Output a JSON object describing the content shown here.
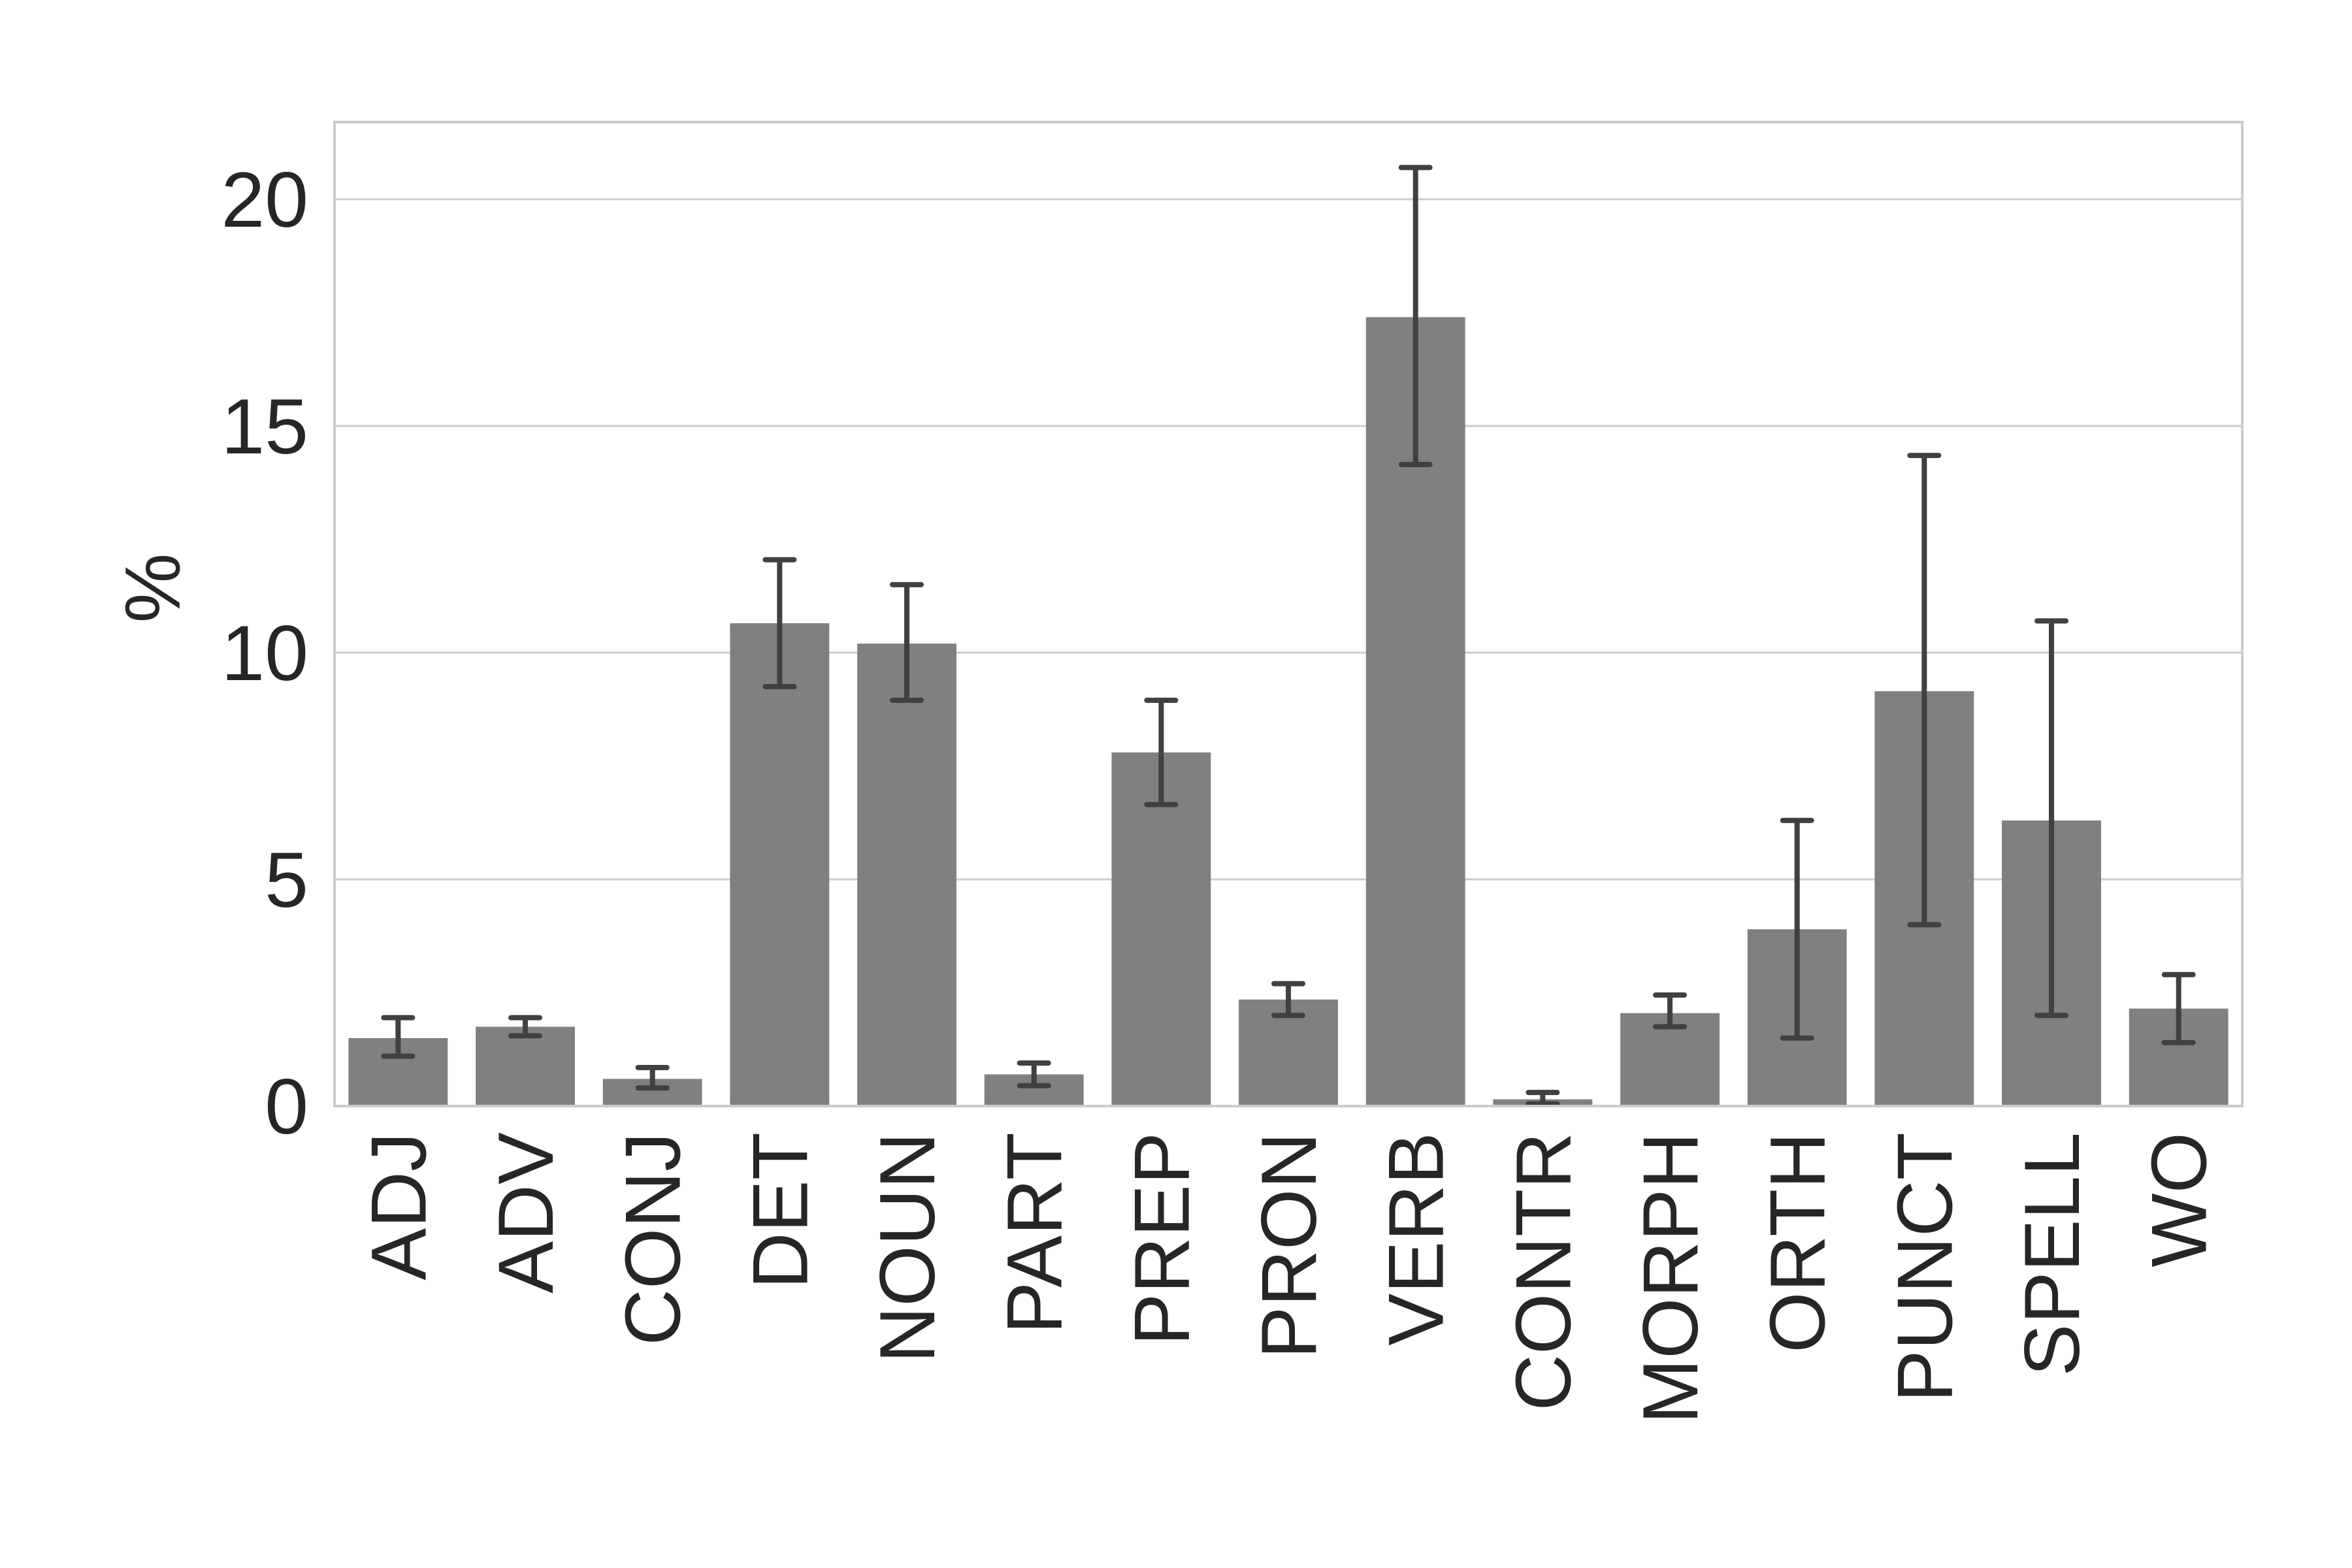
{
  "chart_data": {
    "type": "bar",
    "title": "",
    "xlabel": "",
    "ylabel": "%",
    "ylim": [
      0,
      21.7
    ],
    "yticks": [
      0,
      5,
      10,
      15,
      20
    ],
    "grid": "horizontal",
    "categories": [
      "ADJ",
      "ADV",
      "CONJ",
      "DET",
      "NOUN",
      "PART",
      "PREP",
      "PRON",
      "VERB",
      "CONTR",
      "MORPH",
      "ORTH",
      "PUNCT",
      "SPELL",
      "WO"
    ],
    "series": [
      {
        "values": [
          1.5,
          1.75,
          0.6,
          10.65,
          10.2,
          0.7,
          7.8,
          2.35,
          17.4,
          0.15,
          2.05,
          3.9,
          9.15,
          6.3,
          2.15
        ],
        "error_low": [
          1.1,
          1.55,
          0.4,
          9.25,
          8.95,
          0.45,
          6.65,
          2.0,
          14.15,
          0.05,
          1.75,
          1.5,
          4.0,
          2.0,
          1.4
        ],
        "error_high": [
          1.95,
          1.95,
          0.85,
          12.05,
          11.5,
          0.95,
          8.95,
          2.7,
          20.7,
          0.3,
          2.45,
          6.3,
          14.35,
          10.7,
          2.9
        ]
      }
    ],
    "colors": {
      "bar": "#808080",
      "error_bar": "#404040",
      "grid": "#cccccc",
      "spine": "#cccccc",
      "text": "#262626"
    }
  }
}
